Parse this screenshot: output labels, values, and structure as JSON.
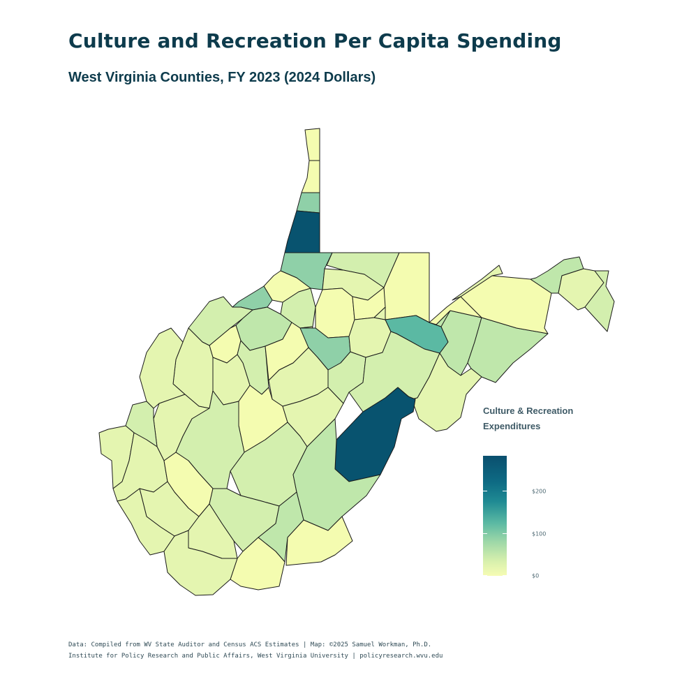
{
  "title": "Culture and Recreation Per Capita Spending",
  "subtitle": "West Virginia Counties, FY 2023 (2024 Dollars)",
  "legend": {
    "title_line1": "Culture & Recreation",
    "title_line2": "Expenditures",
    "labels": {
      "l200": "$200",
      "l100": "$100",
      "l0": "$0"
    },
    "scale_min": 0,
    "scale_max": 270
  },
  "colors": {
    "title": "#0d3b4c",
    "county_border": "#1a1a1a",
    "pale": "#f4fcb0",
    "light": "#e4f5b0",
    "light_green": "#d3efae",
    "mint": "#bfe7ab",
    "teal_light": "#8fd0a8",
    "teal": "#5bb9a3",
    "dark": "#08536f"
  },
  "footer": {
    "line1": "Data: Compiled from WV State Auditor and Census ACS Estimates | Map: ©2025 Samuel Workman, Ph.D.",
    "line2": "Institute for Policy Research and Public Affairs, West Virginia University | policyresearch.wvu.edu"
  }
}
